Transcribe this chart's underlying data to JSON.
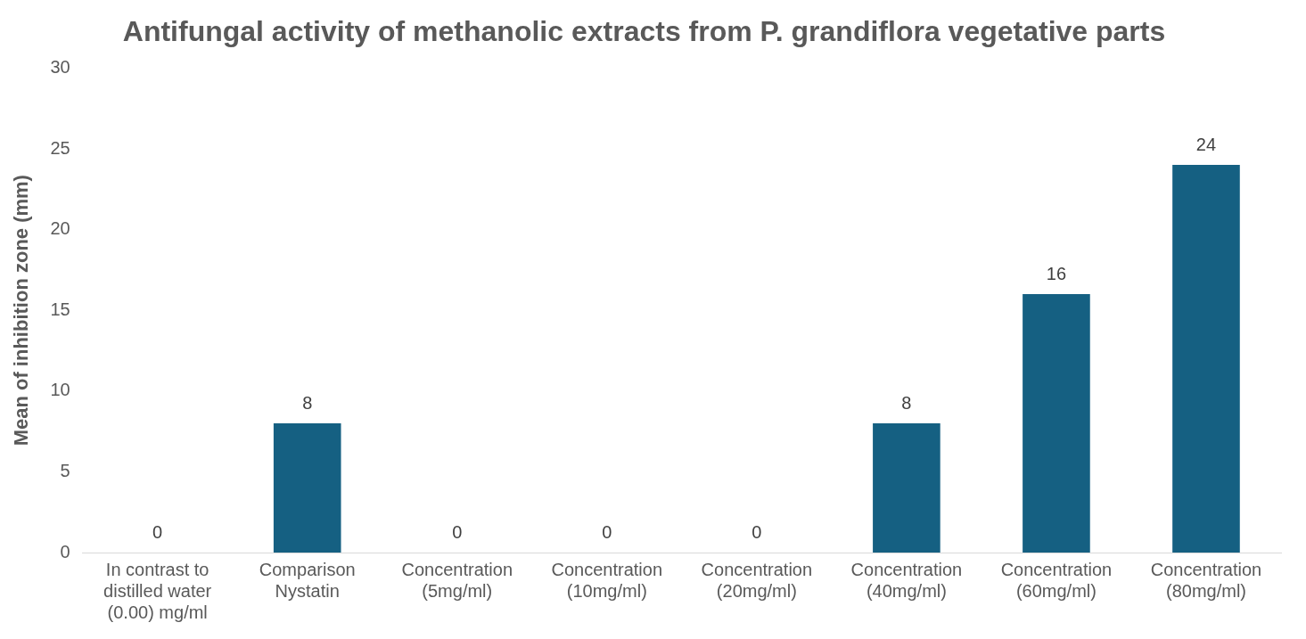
{
  "chart_data": {
    "type": "bar",
    "title": "Antifungal activity of methanolic extracts from P. grandiflora vegetative parts",
    "ylabel": "Mean of inhibition zone (mm)",
    "categories": [
      "In contrast to distilled water (0.00) mg/ml",
      "Comparison Nystatin",
      "Concentration (5mg/ml)",
      "Concentration (10mg/ml)",
      "Concentration (20mg/ml)",
      "Concentration (40mg/ml)",
      "Concentration (60mg/ml)",
      "Concentration (80mg/ml)"
    ],
    "values": [
      0,
      8,
      0,
      0,
      0,
      8,
      16,
      24
    ],
    "color": "#156082",
    "ylim": [
      0,
      30
    ],
    "yticks": [
      0,
      5,
      10,
      15,
      20,
      25,
      30
    ],
    "grid": false,
    "legend": false,
    "data_labels": true
  }
}
